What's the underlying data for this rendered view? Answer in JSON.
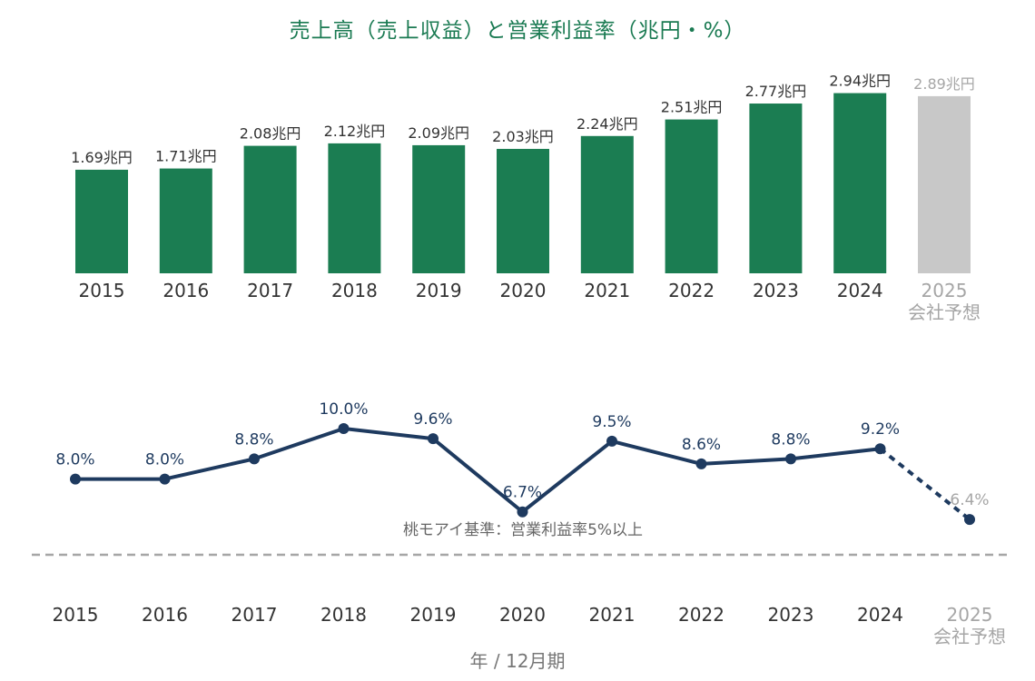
{
  "chart_data": [
    {
      "type": "bar",
      "title": "売上高（売上収益）と営業利益率（兆円・%）",
      "unit": "兆円",
      "categories": [
        "2015",
        "2016",
        "2017",
        "2018",
        "2019",
        "2020",
        "2021",
        "2022",
        "2023",
        "2024",
        "2025"
      ],
      "forecast_label": "会社予想",
      "values": [
        1.69,
        1.71,
        2.08,
        2.12,
        2.09,
        2.03,
        2.24,
        2.51,
        2.77,
        2.94,
        2.89
      ],
      "value_labels": [
        "1.69兆円",
        "1.71兆円",
        "2.08兆円",
        "2.12兆円",
        "2.09兆円",
        "2.03兆円",
        "2.24兆円",
        "2.51兆円",
        "2.77兆円",
        "2.94兆円",
        "2.89兆円"
      ],
      "forecast_index": 10,
      "colors": {
        "actual": "#1b7d52",
        "forecast": "#c8c8c8"
      }
    },
    {
      "type": "line",
      "series": [
        {
          "values": [
            8.0,
            8.0,
            8.8,
            10.0,
            9.6,
            6.7,
            9.5,
            8.6,
            8.8,
            9.2,
            6.4
          ],
          "value_labels": [
            "8.0%",
            "8.0%",
            "8.8%",
            "10.0%",
            "9.6%",
            "6.7%",
            "9.5%",
            "8.6%",
            "8.8%",
            "9.2%",
            "6.4%"
          ]
        }
      ],
      "categories": [
        "2015",
        "2016",
        "2017",
        "2018",
        "2019",
        "2020",
        "2021",
        "2022",
        "2023",
        "2024",
        "2025"
      ],
      "forecast_label": "会社予想",
      "forecast_index": 10,
      "reference_line": {
        "value": 5,
        "label": "桃モアイ基準：営業利益率5%以上",
        "style": "dashed"
      },
      "xlabel": "年 / 12月期",
      "colors": {
        "line": "#1e3a5f",
        "reference": "#a6a6a6"
      }
    }
  ]
}
